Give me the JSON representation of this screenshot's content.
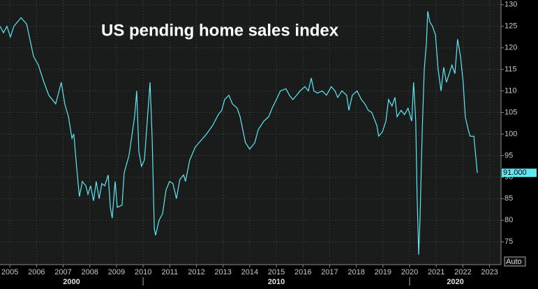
{
  "chart_data": {
    "type": "line",
    "title": "US pending home sales index",
    "color": "#5ee9f2",
    "grid": true,
    "xlim": [
      2004.63,
      2023.43
    ],
    "ylim": [
      69.7,
      131.1
    ],
    "xticks": [
      2005,
      2006,
      2007,
      2008,
      2009,
      2010,
      2011,
      2012,
      2013,
      2014,
      2015,
      2016,
      2017,
      2018,
      2019,
      2020,
      2021,
      2022,
      2023
    ],
    "yticks": [
      75,
      80,
      85,
      90,
      95,
      100,
      105,
      110,
      115,
      120,
      125,
      130
    ],
    "x_group_labels": [
      "2000",
      "2010",
      "2020"
    ],
    "x_group_breaks": [
      2010,
      2020
    ],
    "last_value": {
      "value": 91,
      "label": "91.000"
    },
    "scale_mode": "Auto",
    "x": [
      2004.63,
      2004.76,
      2004.89,
      2005.02,
      2005.15,
      2005.42,
      2005.63,
      2005.89,
      2006.07,
      2006.28,
      2006.46,
      2006.72,
      2006.93,
      2007.06,
      2007.2,
      2007.33,
      2007.4,
      2007.51,
      2007.61,
      2007.72,
      2007.85,
      2007.93,
      2008.03,
      2008.14,
      2008.24,
      2008.35,
      2008.45,
      2008.56,
      2008.69,
      2008.77,
      2008.84,
      2008.95,
      2009.03,
      2009.21,
      2009.29,
      2009.47,
      2009.68,
      2009.76,
      2009.84,
      2009.94,
      2010.05,
      2010.26,
      2010.34,
      2010.42,
      2010.47,
      2010.6,
      2010.73,
      2010.86,
      2010.99,
      2011.12,
      2011.25,
      2011.38,
      2011.52,
      2011.59,
      2011.75,
      2011.96,
      2012.17,
      2012.38,
      2012.61,
      2012.82,
      2012.95,
      2013.06,
      2013.22,
      2013.35,
      2013.53,
      2013.64,
      2013.84,
      2014.0,
      2014.19,
      2014.32,
      2014.53,
      2014.71,
      2014.84,
      2015.0,
      2015.15,
      2015.36,
      2015.49,
      2015.62,
      2015.76,
      2015.89,
      2016.07,
      2016.2,
      2016.31,
      2016.41,
      2016.54,
      2016.72,
      2016.88,
      2017.06,
      2017.2,
      2017.3,
      2017.46,
      2017.64,
      2017.72,
      2017.85,
      2018.03,
      2018.19,
      2018.32,
      2018.45,
      2018.58,
      2018.77,
      2018.84,
      2018.98,
      2019.11,
      2019.21,
      2019.34,
      2019.45,
      2019.53,
      2019.68,
      2019.81,
      2019.94,
      2020.08,
      2020.15,
      2020.23,
      2020.28,
      2020.34,
      2020.39,
      2020.47,
      2020.55,
      2020.63,
      2020.68,
      2020.76,
      2020.86,
      2020.97,
      2021.07,
      2021.18,
      2021.28,
      2021.38,
      2021.46,
      2021.59,
      2021.7,
      2021.8,
      2021.91,
      2022.01,
      2022.09,
      2022.2,
      2022.27,
      2022.41,
      2022.48,
      2022.54
    ],
    "values": [
      125,
      123.5,
      125,
      122.5,
      125,
      127,
      125.5,
      118,
      116,
      112,
      109,
      107,
      112,
      107,
      104,
      99,
      100,
      92,
      85.5,
      89,
      88,
      86,
      88,
      84.5,
      89,
      85,
      88.5,
      88,
      90.5,
      83,
      80.5,
      89,
      83,
      83.5,
      91,
      95,
      104,
      110,
      96,
      92.5,
      94,
      112,
      99,
      78,
      76.5,
      80,
      81.5,
      87,
      89,
      88.5,
      85,
      89.5,
      90.5,
      89,
      94,
      97,
      98.5,
      100,
      102,
      104.5,
      105.5,
      108,
      109,
      107,
      106,
      104,
      98,
      96.5,
      98,
      101,
      103,
      104,
      106,
      108,
      110,
      110.5,
      109,
      108,
      109,
      110,
      111,
      110,
      113,
      110,
      109.5,
      110,
      109,
      111,
      110,
      108.5,
      110,
      109,
      105.5,
      109,
      110,
      108,
      107,
      105.5,
      105,
      102,
      99.5,
      100.5,
      103,
      108,
      106.5,
      108.5,
      104,
      105.5,
      104.5,
      106,
      103,
      112,
      103,
      86,
      72,
      80,
      100,
      115,
      121,
      128.5,
      126,
      125,
      123,
      115,
      110,
      115.5,
      112,
      113.5,
      116,
      114,
      122,
      118,
      112,
      104,
      101,
      99.5,
      99.5,
      95,
      91
    ]
  }
}
